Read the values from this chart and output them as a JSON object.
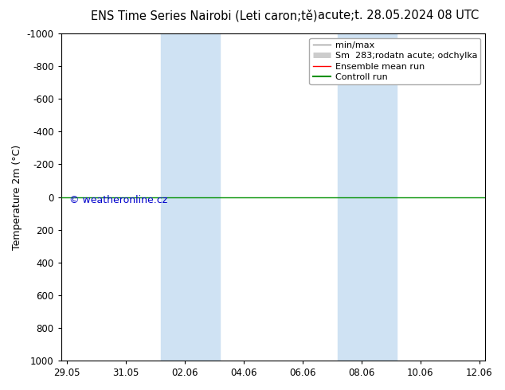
{
  "title_left": "ENS Time Series Nairobi (Leti caron;tě)",
  "title_right": "acute;t. 28.05.2024 08 UTC",
  "ylabel": "Temperature 2m (°C)",
  "ylim": [
    -1000,
    1000
  ],
  "yticks": [
    -1000,
    -800,
    -600,
    -400,
    -200,
    0,
    200,
    400,
    600,
    800,
    1000
  ],
  "ytick_labels": [
    "-1000",
    "-800",
    "-600",
    "-400",
    "-200",
    "0",
    "200",
    "400",
    "600",
    "800",
    "1000"
  ],
  "x_dates": [
    "29.05",
    "31.05",
    "02.06",
    "04.06",
    "06.06",
    "08.06",
    "10.06",
    "12.06"
  ],
  "x_values": [
    0,
    2,
    4,
    6,
    8,
    10,
    12,
    14
  ],
  "xlim": [
    -0.2,
    14.2
  ],
  "shade_bands": [
    {
      "x_start": 3.2,
      "x_end": 5.2
    },
    {
      "x_start": 9.2,
      "x_end": 11.2
    }
  ],
  "shade_color": "#cfe2f3",
  "line_y": 0,
  "control_color": "#009000",
  "ensemble_color": "#ff0000",
  "minmax_color": "#999999",
  "spread_color": "#cccccc",
  "background_color": "#ffffff",
  "border_color": "#000000",
  "watermark": "© weatheronline.cz",
  "watermark_color": "#0000cc",
  "legend_entries": [
    {
      "label": "min/max",
      "color": "#999999",
      "lw": 1.0
    },
    {
      "label": "Sm  283;rodatn acute; odchylka",
      "color": "#cccccc",
      "lw": 5
    },
    {
      "label": "Ensemble mean run",
      "color": "#ff0000",
      "lw": 1.0
    },
    {
      "label": "Controll run",
      "color": "#009000",
      "lw": 1.5
    }
  ],
  "title_fontsize": 10.5,
  "label_fontsize": 9,
  "tick_fontsize": 8.5,
  "legend_fontsize": 8
}
